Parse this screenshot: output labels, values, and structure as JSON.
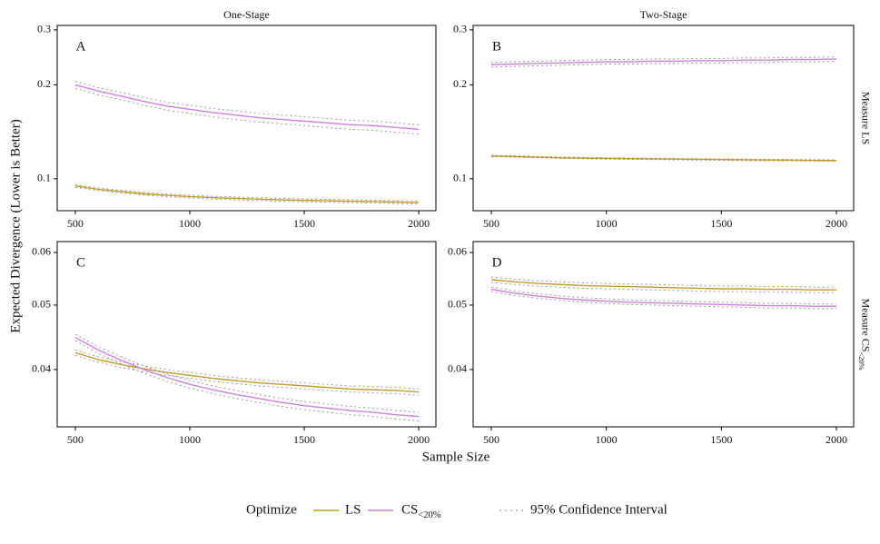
{
  "figure": {
    "x_label": "Sample Size",
    "y_label": "Expected Divergence (Lower is Better)",
    "columns": [
      "One-Stage",
      "Two-Stage"
    ],
    "rows": [
      "Measure LS",
      "Measure CS<20%"
    ],
    "legend_title": "Optimize",
    "ci_label": "95% Confidence Interval"
  },
  "chart_data": [
    {
      "type": "line",
      "title": "A",
      "log_y": true,
      "x": [
        500,
        600,
        700,
        800,
        900,
        1000,
        1100,
        1200,
        1300,
        1400,
        1500,
        1600,
        1700,
        1800,
        1900,
        2000
      ],
      "xlim": [
        421,
        2075
      ],
      "xticks": [
        500,
        1000,
        1500,
        2000
      ],
      "ylim": [
        0.079,
        0.31
      ],
      "yticks": [
        0.1,
        0.2,
        0.3
      ],
      "series": [
        {
          "name": "LS",
          "color": "#c49a2c",
          "values": [
            0.0948,
            0.0925,
            0.091,
            0.0895,
            0.0885,
            0.0877,
            0.087,
            0.0865,
            0.086,
            0.0856,
            0.0853,
            0.085,
            0.0847,
            0.0845,
            0.0842,
            0.0839
          ],
          "ci_low": [
            0.0939,
            0.0916,
            0.0901,
            0.0886,
            0.0876,
            0.0868,
            0.0861,
            0.0856,
            0.0851,
            0.0847,
            0.0844,
            0.0841,
            0.0838,
            0.0836,
            0.0833,
            0.083
          ],
          "ci_high": [
            0.0957,
            0.0934,
            0.0919,
            0.0904,
            0.0894,
            0.0886,
            0.0879,
            0.0874,
            0.0869,
            0.0865,
            0.0862,
            0.0859,
            0.0856,
            0.0854,
            0.0851,
            0.0848
          ]
        },
        {
          "name": "CS<20%",
          "color": "#d07ee0",
          "values": [
            0.2,
            0.191,
            0.184,
            0.177,
            0.171,
            0.167,
            0.163,
            0.16,
            0.157,
            0.155,
            0.153,
            0.151,
            0.149,
            0.148,
            0.146,
            0.144
          ],
          "ci_low": [
            0.195,
            0.186,
            0.179,
            0.172,
            0.166,
            0.162,
            0.158,
            0.155,
            0.152,
            0.15,
            0.148,
            0.146,
            0.144,
            0.143,
            0.141,
            0.139
          ],
          "ci_high": [
            0.205,
            0.196,
            0.189,
            0.182,
            0.176,
            0.172,
            0.168,
            0.165,
            0.162,
            0.16,
            0.158,
            0.156,
            0.154,
            0.153,
            0.151,
            0.149
          ]
        }
      ]
    },
    {
      "type": "line",
      "title": "B",
      "log_y": true,
      "x": [
        500,
        600,
        700,
        800,
        900,
        1000,
        1100,
        1200,
        1300,
        1400,
        1500,
        1600,
        1700,
        1800,
        1900,
        2000
      ],
      "xlim": [
        421,
        2075
      ],
      "xticks": [
        500,
        1000,
        1500,
        2000
      ],
      "ylim": [
        0.079,
        0.31
      ],
      "yticks": [
        0.1,
        0.2,
        0.3
      ],
      "series": [
        {
          "name": "LS",
          "color": "#c49a2c",
          "values": [
            0.1183,
            0.1178,
            0.1173,
            0.1168,
            0.1165,
            0.1162,
            0.116,
            0.1158,
            0.1156,
            0.1154,
            0.1152,
            0.115,
            0.1148,
            0.1147,
            0.1145,
            0.1144
          ],
          "ci_low": [
            0.1177,
            0.1172,
            0.1167,
            0.1162,
            0.1159,
            0.1156,
            0.1154,
            0.1152,
            0.115,
            0.1148,
            0.1146,
            0.1144,
            0.1142,
            0.1141,
            0.1139,
            0.1138
          ],
          "ci_high": [
            0.1189,
            0.1184,
            0.1179,
            0.1174,
            0.1171,
            0.1168,
            0.1166,
            0.1164,
            0.1162,
            0.116,
            0.1158,
            0.1156,
            0.1154,
            0.1153,
            0.1151,
            0.115
          ]
        },
        {
          "name": "CS<20%",
          "color": "#d07ee0",
          "values": [
            0.232,
            0.233,
            0.234,
            0.235,
            0.236,
            0.237,
            0.237,
            0.238,
            0.238,
            0.239,
            0.239,
            0.24,
            0.24,
            0.241,
            0.241,
            0.242
          ],
          "ci_low": [
            0.228,
            0.229,
            0.23,
            0.231,
            0.232,
            0.233,
            0.233,
            0.234,
            0.234,
            0.235,
            0.235,
            0.236,
            0.236,
            0.237,
            0.237,
            0.238
          ],
          "ci_high": [
            0.236,
            0.237,
            0.238,
            0.239,
            0.24,
            0.241,
            0.241,
            0.242,
            0.242,
            0.243,
            0.243,
            0.244,
            0.244,
            0.245,
            0.245,
            0.246
          ]
        }
      ]
    },
    {
      "type": "line",
      "title": "C",
      "log_y": true,
      "x": [
        500,
        600,
        700,
        800,
        900,
        1000,
        1100,
        1200,
        1300,
        1400,
        1500,
        1600,
        1700,
        1800,
        1900,
        2000
      ],
      "xlim": [
        421,
        2075
      ],
      "xticks": [
        500,
        1000,
        1500,
        2000
      ],
      "ylim": [
        0.0328,
        0.0623
      ],
      "yticks": [
        0.04,
        0.05,
        0.06
      ],
      "series": [
        {
          "name": "LS",
          "color": "#c49a2c",
          "values": [
            0.0424,
            0.0414,
            0.0407,
            0.0401,
            0.0396,
            0.0392,
            0.0388,
            0.0385,
            0.0382,
            0.038,
            0.0378,
            0.0376,
            0.0374,
            0.0373,
            0.0372,
            0.037
          ],
          "ci_low": [
            0.042,
            0.041,
            0.0403,
            0.0397,
            0.0392,
            0.0388,
            0.0384,
            0.0381,
            0.0378,
            0.0376,
            0.0374,
            0.0372,
            0.037,
            0.0369,
            0.0368,
            0.0366
          ],
          "ci_high": [
            0.0428,
            0.0418,
            0.0411,
            0.0405,
            0.04,
            0.0396,
            0.0392,
            0.0389,
            0.0386,
            0.0384,
            0.0382,
            0.038,
            0.0378,
            0.0377,
            0.0376,
            0.0374
          ]
        },
        {
          "name": "CS<20%",
          "color": "#d07ee0",
          "values": [
            0.0447,
            0.0428,
            0.0413,
            0.04,
            0.0389,
            0.038,
            0.0373,
            0.0367,
            0.0362,
            0.0357,
            0.0353,
            0.035,
            0.0347,
            0.0345,
            0.0342,
            0.034
          ],
          "ci_low": [
            0.0442,
            0.0423,
            0.0408,
            0.0395,
            0.0384,
            0.0375,
            0.0368,
            0.0362,
            0.0357,
            0.0352,
            0.0348,
            0.0345,
            0.0342,
            0.034,
            0.0337,
            0.0335
          ],
          "ci_high": [
            0.0452,
            0.0433,
            0.0418,
            0.0405,
            0.0394,
            0.0385,
            0.0378,
            0.0372,
            0.0367,
            0.0362,
            0.0358,
            0.0355,
            0.0352,
            0.035,
            0.0347,
            0.0345
          ]
        }
      ]
    },
    {
      "type": "line",
      "title": "D",
      "log_y": true,
      "x": [
        500,
        600,
        700,
        800,
        900,
        1000,
        1100,
        1200,
        1300,
        1400,
        1500,
        1600,
        1700,
        1800,
        1900,
        2000
      ],
      "xlim": [
        421,
        2075
      ],
      "xticks": [
        500,
        1000,
        1500,
        2000
      ],
      "ylim": [
        0.0328,
        0.0623
      ],
      "yticks": [
        0.04,
        0.05,
        0.06
      ],
      "series": [
        {
          "name": "LS",
          "color": "#c49a2c",
          "values": [
            0.0546,
            0.0542,
            0.0539,
            0.0537,
            0.0535,
            0.0534,
            0.0533,
            0.0532,
            0.0531,
            0.053,
            0.0529,
            0.0529,
            0.0528,
            0.0528,
            0.0527,
            0.0527
          ],
          "ci_low": [
            0.0541,
            0.0537,
            0.0534,
            0.0532,
            0.053,
            0.0529,
            0.0528,
            0.0527,
            0.0526,
            0.0525,
            0.0524,
            0.0524,
            0.0523,
            0.0523,
            0.0522,
            0.0522
          ],
          "ci_high": [
            0.0551,
            0.0547,
            0.0544,
            0.0542,
            0.054,
            0.0539,
            0.0538,
            0.0537,
            0.0536,
            0.0535,
            0.0534,
            0.0534,
            0.0533,
            0.0533,
            0.0532,
            0.0532
          ]
        },
        {
          "name": "CS<20%",
          "color": "#d07ee0",
          "values": [
            0.0528,
            0.0521,
            0.0516,
            0.0512,
            0.0509,
            0.0507,
            0.0505,
            0.0504,
            0.0503,
            0.0502,
            0.0501,
            0.05,
            0.0499,
            0.0499,
            0.0498,
            0.0498
          ],
          "ci_low": [
            0.0524,
            0.0517,
            0.0512,
            0.0508,
            0.0505,
            0.0503,
            0.0501,
            0.05,
            0.0499,
            0.0498,
            0.0497,
            0.0496,
            0.0495,
            0.0495,
            0.0494,
            0.0494
          ],
          "ci_high": [
            0.0532,
            0.0525,
            0.052,
            0.0516,
            0.0513,
            0.0511,
            0.0509,
            0.0508,
            0.0507,
            0.0506,
            0.0505,
            0.0504,
            0.0503,
            0.0503,
            0.0502,
            0.0502
          ]
        }
      ]
    }
  ]
}
